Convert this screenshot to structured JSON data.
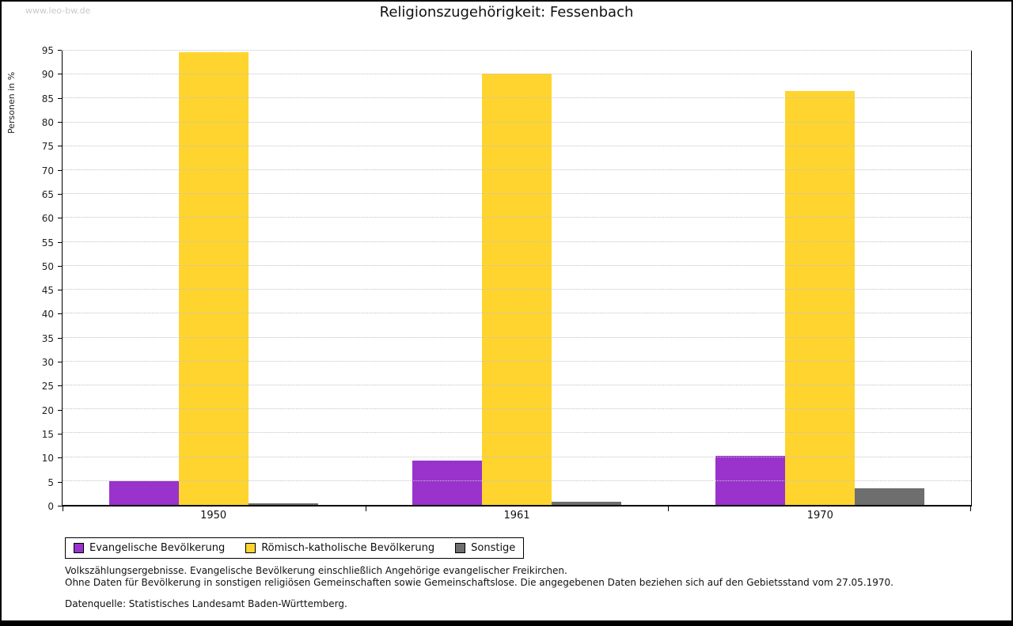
{
  "watermark": "www.leo-bw.de",
  "title": "Religionszugehörigkeit: Fessenbach",
  "chart_data": {
    "type": "bar",
    "title": "Religionszugehörigkeit: Fessenbach",
    "categories": [
      "1950",
      "1961",
      "1970"
    ],
    "series": [
      {
        "name": "Evangelische Bevölkerung",
        "color": "#9933CC",
        "values": [
          5.0,
          9.2,
          10.2
        ]
      },
      {
        "name": "Römisch-katholische Bevölkerung",
        "color": "#FFD42E",
        "values": [
          94.7,
          90.2,
          86.5
        ]
      },
      {
        "name": "Sonstige",
        "color": "#6E6E6E",
        "values": [
          0.4,
          0.6,
          3.4
        ]
      }
    ],
    "xlabel": "",
    "ylabel": "Personen in %",
    "ylim": [
      0,
      95
    ],
    "ytick_step": 5,
    "grid": true,
    "legend_position": "bottom-left"
  },
  "footnotes": [
    "Volkszählungsergebnisse. Evangelische Bevölkerung einschließlich Angehörige evangelischer Freikirchen.",
    "Ohne Daten für Bevölkerung in sonstigen religiösen Gemeinschaften sowie Gemeinschaftslose. Die angegebenen Daten beziehen sich auf den Gebietsstand vom 27.05.1970.",
    "Datenquelle: Statistisches Landesamt Baden-Württemberg."
  ]
}
